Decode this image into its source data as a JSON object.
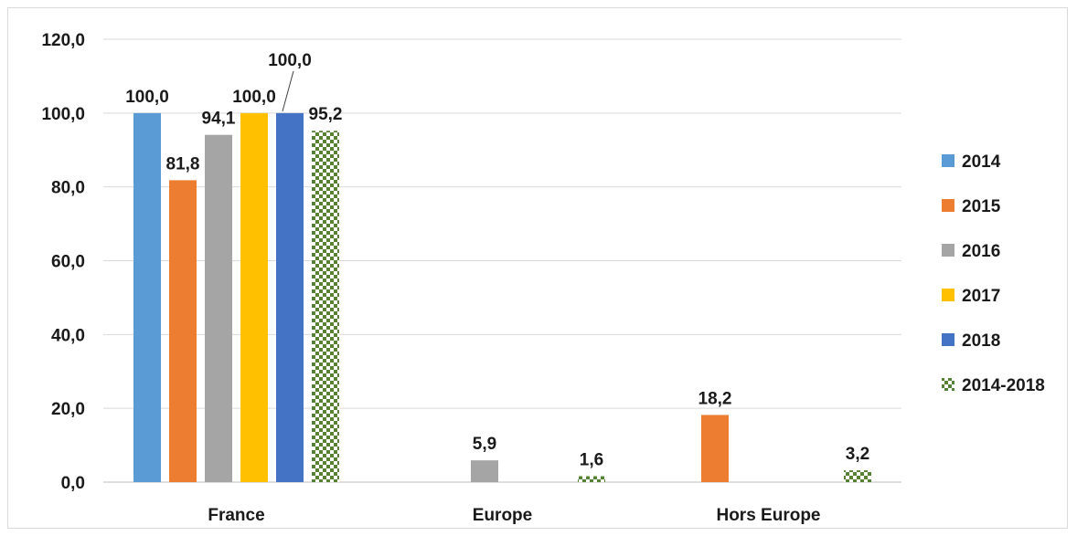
{
  "chart_data": {
    "type": "bar",
    "title": "",
    "xlabel": "",
    "ylabel": "",
    "categories": [
      "France",
      "Europe",
      "Hors Europe"
    ],
    "ylim": [
      0,
      120
    ],
    "yticks": [
      "0,0",
      "20,0",
      "40,0",
      "60,0",
      "80,0",
      "100,0",
      "120,0"
    ],
    "grid": true,
    "legend_position": "right",
    "series": [
      {
        "name": "2014",
        "color": "#5b9bd5",
        "pattern": "solid",
        "values": [
          100.0,
          null,
          null
        ],
        "labels": [
          "100,0",
          "",
          ""
        ]
      },
      {
        "name": "2015",
        "color": "#ed7d31",
        "pattern": "solid",
        "values": [
          81.8,
          null,
          18.2
        ],
        "labels": [
          "81,8",
          "",
          "18,2"
        ]
      },
      {
        "name": "2016",
        "color": "#a5a5a5",
        "pattern": "solid",
        "values": [
          94.1,
          5.9,
          null
        ],
        "labels": [
          "94,1",
          "5,9",
          ""
        ]
      },
      {
        "name": "2017",
        "color": "#ffc000",
        "pattern": "solid",
        "values": [
          100.0,
          null,
          null
        ],
        "labels": [
          "100,0",
          "",
          ""
        ]
      },
      {
        "name": "2018",
        "color": "#4472c4",
        "pattern": "solid",
        "values": [
          100.0,
          null,
          null
        ],
        "labels": [
          "100,0",
          "",
          ""
        ]
      },
      {
        "name": "2014-2018",
        "color": "#548235",
        "pattern": "checker",
        "values": [
          95.2,
          1.6,
          3.2
        ],
        "labels": [
          "95,2",
          "1,6",
          "3,2"
        ]
      }
    ]
  }
}
